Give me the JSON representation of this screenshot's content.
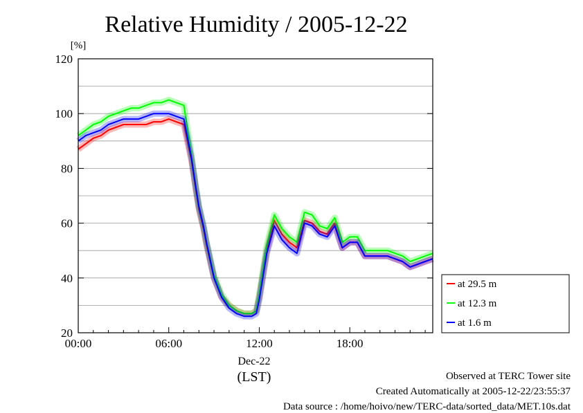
{
  "colors": {
    "s1": "#ff0000",
    "s2": "#00ff00",
    "s3": "#0000ff",
    "grid": "#9a9a9a"
  },
  "footer": {
    "line1": "Observed at TERC Tower site",
    "line2": "Created Automatically at 2005-12-22/23:55:37",
    "line3": "Data source : /home/hoivo/new/TERC-data/sorted_data/MET.10s.dat"
  },
  "chart_data": {
    "type": "line",
    "title": "Relative Humidity / 2005-12-22",
    "y_unit": "[%]",
    "x_label": "(LST)",
    "x_sublabel": "Dec-22",
    "x_range_hours": [
      0,
      23.5
    ],
    "x_ticks": [
      {
        "h": 0,
        "label": "00:00"
      },
      {
        "h": 6,
        "label": "06:00"
      },
      {
        "h": 12,
        "label": "12:00"
      },
      {
        "h": 18,
        "label": "18:00"
      }
    ],
    "ylim": [
      20,
      120
    ],
    "y_ticks": [
      20,
      40,
      60,
      80,
      100,
      120
    ],
    "grid": true,
    "legend_position": "right",
    "series": [
      {
        "name": "at 29.5 m",
        "color": "#ff0000",
        "x": [
          0,
          0.5,
          1,
          1.5,
          2,
          2.5,
          3,
          3.5,
          4,
          4.5,
          5,
          5.5,
          6,
          6.5,
          7,
          7.5,
          7.8,
          8,
          8.3,
          8.5,
          9,
          9.5,
          10,
          10.5,
          11,
          11.5,
          11.8,
          12,
          12.5,
          13,
          13.5,
          14,
          14.5,
          15,
          15.5,
          16,
          16.5,
          17,
          17.5,
          18,
          18.5,
          19,
          19.5,
          20,
          20.5,
          21,
          21.5,
          22,
          22.5,
          23,
          23.5
        ],
        "y": [
          87,
          89,
          91,
          92,
          94,
          95,
          96,
          96,
          96,
          96,
          97,
          97,
          98,
          97,
          96,
          83,
          72,
          65,
          58,
          52,
          40,
          33,
          30,
          28,
          27,
          27,
          28,
          33,
          50,
          61,
          56,
          53,
          51,
          61,
          60,
          57,
          56,
          60,
          51,
          53,
          53,
          48,
          48,
          48,
          48,
          47,
          46,
          44,
          45,
          46,
          47
        ]
      },
      {
        "name": "at 12.3 m",
        "color": "#00ff00",
        "x": [
          0,
          0.5,
          1,
          1.5,
          2,
          2.5,
          3,
          3.5,
          4,
          4.5,
          5,
          5.5,
          6,
          6.5,
          7,
          7.5,
          7.8,
          8,
          8.3,
          8.5,
          9,
          9.5,
          10,
          10.5,
          11,
          11.5,
          11.8,
          12,
          12.5,
          13,
          13.5,
          14,
          14.5,
          15,
          15.5,
          16,
          16.5,
          17,
          17.5,
          18,
          18.5,
          19,
          19.5,
          20,
          20.5,
          21,
          21.5,
          22,
          22.5,
          23,
          23.5
        ],
        "y": [
          92,
          94,
          96,
          97,
          99,
          100,
          101,
          102,
          102,
          103,
          104,
          104,
          105,
          104,
          103,
          85,
          73,
          66,
          59,
          53,
          41,
          34,
          30,
          28,
          27,
          27,
          28,
          34,
          52,
          63,
          58,
          55,
          53,
          64,
          63,
          59,
          58,
          62,
          53,
          55,
          55,
          50,
          50,
          50,
          50,
          49,
          48,
          46,
          47,
          48,
          49
        ]
      },
      {
        "name": "at 1.6 m",
        "color": "#0000ff",
        "x": [
          0,
          0.5,
          1,
          1.5,
          2,
          2.5,
          3,
          3.5,
          4,
          4.5,
          5,
          5.5,
          6,
          6.5,
          7,
          7.5,
          7.8,
          8,
          8.3,
          8.5,
          9,
          9.5,
          10,
          10.5,
          11,
          11.5,
          11.8,
          12,
          12.5,
          13,
          13.5,
          14,
          14.5,
          15,
          15.5,
          16,
          16.5,
          17,
          17.5,
          18,
          18.5,
          19,
          19.5,
          20,
          20.5,
          21,
          21.5,
          22,
          22.5,
          23,
          23.5
        ],
        "y": [
          90,
          92,
          93,
          94,
          96,
          97,
          98,
          98,
          98,
          99,
          100,
          100,
          100,
          99,
          98,
          84,
          73,
          66,
          59,
          53,
          40,
          33,
          29,
          27,
          26,
          26,
          27,
          32,
          49,
          59,
          54,
          51,
          49,
          60,
          59,
          56,
          55,
          59,
          51,
          53,
          53,
          48,
          48,
          48,
          48,
          47,
          46,
          44,
          45,
          46,
          47
        ]
      }
    ]
  }
}
